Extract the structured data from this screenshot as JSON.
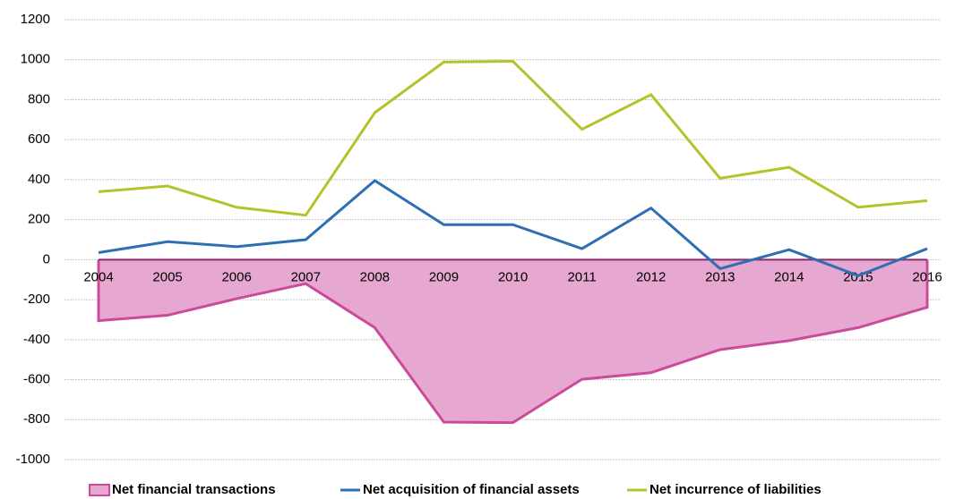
{
  "chart_data": {
    "type": "line",
    "categories": [
      "2004",
      "2005",
      "2006",
      "2007",
      "2008",
      "2009",
      "2010",
      "2011",
      "2012",
      "2013",
      "2014",
      "2015",
      "2016"
    ],
    "series": [
      {
        "name": "Net financial transactions",
        "color": "#cc4a9a",
        "fill": "#e6a8d0",
        "area": true,
        "values": [
          -305,
          -278,
          -195,
          -120,
          -340,
          -812,
          -815,
          -598,
          -565,
          -450,
          -405,
          -340,
          -238
        ]
      },
      {
        "name": "Net acquisition of financial assets",
        "color": "#2e6fb4",
        "values": [
          35,
          90,
          65,
          100,
          395,
          175,
          175,
          55,
          258,
          -45,
          50,
          -80,
          55
        ]
      },
      {
        "name": "Net incurrence of liabilities",
        "color": "#b5c22b",
        "values": [
          340,
          368,
          262,
          222,
          735,
          988,
          992,
          652,
          825,
          407,
          462,
          262,
          295
        ]
      }
    ],
    "ylim": [
      -1000,
      1200
    ],
    "yticks": [
      -1000,
      -800,
      -600,
      -400,
      -200,
      0,
      200,
      400,
      600,
      800,
      1000,
      1200
    ],
    "grid": true
  }
}
